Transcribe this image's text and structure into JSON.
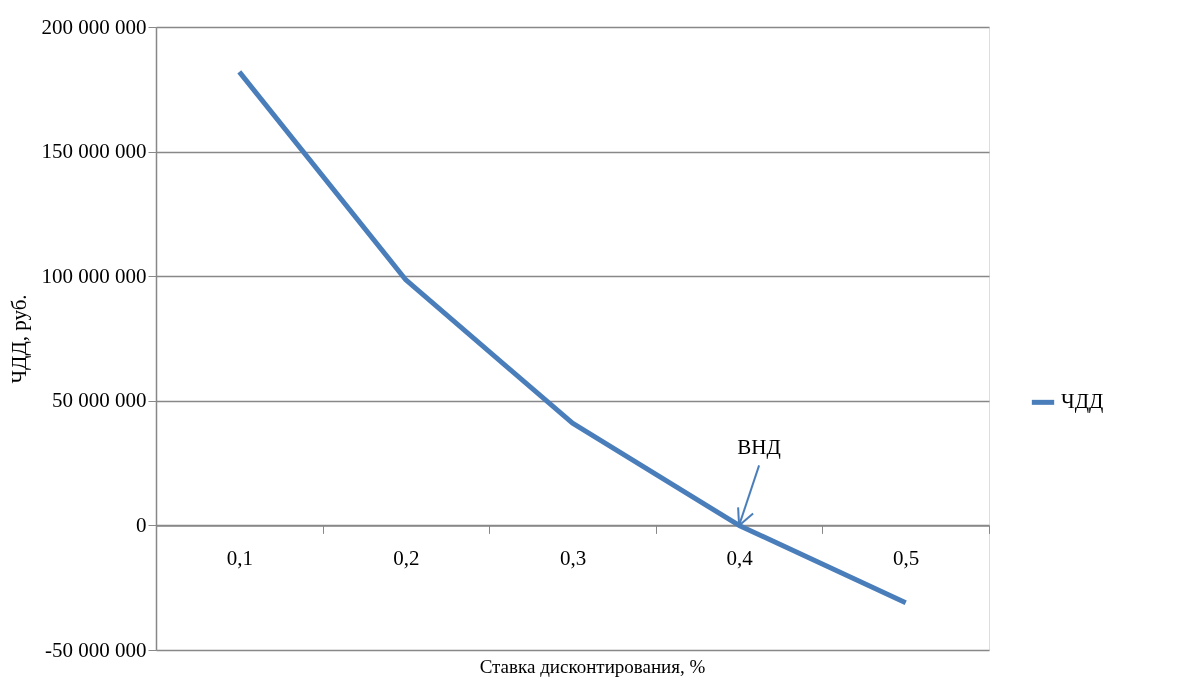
{
  "chart_data": {
    "type": "line",
    "xlabel": "Ставка дисконтирования, %",
    "ylabel": "ЧДД, руб.",
    "categories": [
      "0,1",
      "0,2",
      "0,3",
      "0,4",
      "0,5"
    ],
    "series": [
      {
        "name": "ЧДД",
        "color": "#4a7ebb",
        "values": [
          182000000,
          98500000,
          41000000,
          0,
          -31000000
        ]
      }
    ],
    "ylim": [
      -50000000,
      200000000
    ],
    "yticks": [
      {
        "value": -50000000,
        "label": "-50 000 000"
      },
      {
        "value": 0,
        "label": "0"
      },
      {
        "value": 50000000,
        "label": "50 000 000"
      },
      {
        "value": 100000000,
        "label": "100 000 000"
      },
      {
        "value": 150000000,
        "label": "150 000 000"
      },
      {
        "value": 200000000,
        "label": "200 000 000"
      }
    ],
    "annotations": [
      {
        "text": "ВНД",
        "x": "0,4",
        "y": 0
      }
    ],
    "grid": "y",
    "legend": "right",
    "marker": "none",
    "line_style": "solid"
  }
}
